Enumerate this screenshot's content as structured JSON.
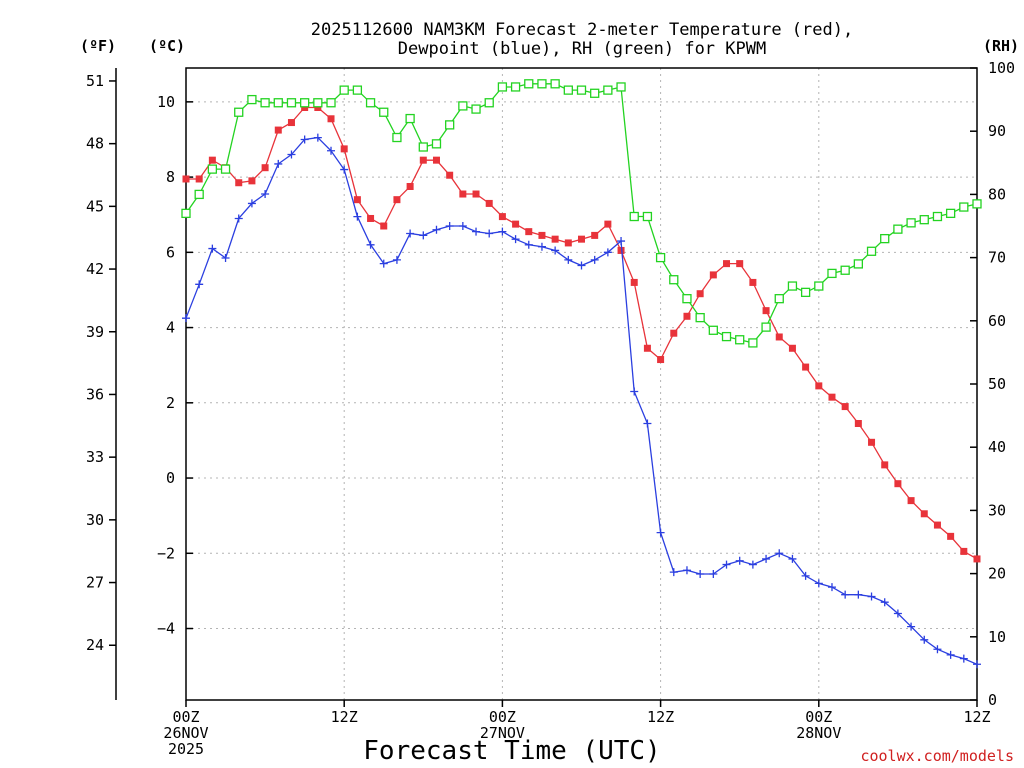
{
  "chart_data": {
    "type": "line",
    "title": "2025112600 NAM3KM Forecast 2-meter Temperature (red),",
    "subtitle": "Dewpoint (blue), RH (green) for KPWM",
    "xlabel": "Forecast Time (UTC)",
    "credit": "coolwx.com/models",
    "unit_labels": {
      "fahrenheit": "(ºF)",
      "celsius": "(ºC)",
      "rh": "(RH)"
    },
    "x_range_hours": [
      0,
      60
    ],
    "x_ticks": [
      {
        "hour": 0,
        "lines": [
          "00Z",
          "26NOV",
          "2025"
        ]
      },
      {
        "hour": 12,
        "lines": [
          "12Z"
        ]
      },
      {
        "hour": 24,
        "lines": [
          "00Z",
          "27NOV"
        ]
      },
      {
        "hour": 36,
        "lines": [
          "12Z"
        ]
      },
      {
        "hour": 48,
        "lines": [
          "00Z",
          "28NOV"
        ]
      },
      {
        "hour": 60,
        "lines": [
          "12Z"
        ]
      }
    ],
    "celsius_axis": {
      "range": [
        -5.9,
        10.9
      ],
      "ticks": [
        -4,
        -2,
        0,
        2,
        4,
        6,
        8,
        10
      ]
    },
    "fahrenheit_ticks": [
      24,
      27,
      30,
      33,
      36,
      39,
      42,
      45,
      48,
      51
    ],
    "rh_axis": {
      "range": [
        0,
        100
      ],
      "ticks": [
        0,
        10,
        20,
        30,
        40,
        50,
        60,
        70,
        80,
        90,
        100
      ]
    },
    "hours": [
      0,
      1,
      2,
      3,
      4,
      5,
      6,
      7,
      8,
      9,
      10,
      11,
      12,
      13,
      14,
      15,
      16,
      17,
      18,
      19,
      20,
      21,
      22,
      23,
      24,
      25,
      26,
      27,
      28,
      29,
      30,
      31,
      32,
      33,
      34,
      35,
      36,
      37,
      38,
      39,
      40,
      41,
      42,
      43,
      44,
      45,
      46,
      47,
      48,
      49,
      50,
      51,
      52,
      53,
      54,
      55,
      56,
      57,
      58,
      59,
      60
    ],
    "series": [
      {
        "name": "2-meter Temperature",
        "unit": "C",
        "color": "#e8333a",
        "marker": "filled-square",
        "values": [
          7.95,
          7.95,
          8.45,
          8.25,
          7.85,
          7.9,
          8.25,
          9.25,
          9.45,
          9.85,
          9.85,
          9.55,
          8.75,
          7.4,
          6.9,
          6.7,
          7.4,
          7.75,
          8.45,
          8.45,
          8.05,
          7.55,
          7.55,
          7.3,
          6.95,
          6.75,
          6.55,
          6.45,
          6.35,
          6.25,
          6.35,
          6.45,
          6.75,
          6.05,
          5.2,
          3.45,
          3.15,
          3.85,
          4.3,
          4.9,
          5.4,
          5.7,
          5.7,
          5.2,
          4.45,
          3.75,
          3.45,
          2.95,
          2.45,
          2.15,
          1.9,
          1.45,
          0.95,
          0.35,
          -0.15,
          -0.6,
          -0.95,
          -1.25,
          -1.55,
          -1.95,
          -2.15
        ]
      },
      {
        "name": "Dewpoint",
        "unit": "C",
        "color": "#2b3fe0",
        "marker": "plus",
        "values": [
          4.25,
          5.15,
          6.1,
          5.85,
          6.9,
          7.3,
          7.55,
          8.35,
          8.6,
          9.0,
          9.05,
          8.7,
          8.2,
          6.95,
          6.2,
          5.7,
          5.8,
          6.5,
          6.45,
          6.6,
          6.7,
          6.7,
          6.55,
          6.5,
          6.55,
          6.35,
          6.2,
          6.15,
          6.05,
          5.8,
          5.65,
          5.8,
          6.0,
          6.3,
          2.3,
          1.45,
          -1.45,
          -2.5,
          -2.45,
          -2.55,
          -2.55,
          -2.3,
          -2.2,
          -2.3,
          -2.15,
          -2.0,
          -2.15,
          -2.6,
          -2.8,
          -2.9,
          -3.1,
          -3.1,
          -3.15,
          -3.3,
          -3.6,
          -3.95,
          -4.3,
          -4.55,
          -4.7,
          -4.8,
          -4.95
        ]
      },
      {
        "name": "RH",
        "unit": "%",
        "color": "#23d321",
        "marker": "open-square",
        "values": [
          77,
          80,
          84,
          84,
          93,
          95,
          94.5,
          94.5,
          94.5,
          94.5,
          94.5,
          94.5,
          96.5,
          96.5,
          94.5,
          93,
          89,
          92,
          87.5,
          88,
          91,
          94,
          93.5,
          94.5,
          97,
          97,
          97.5,
          97.5,
          97.5,
          96.5,
          96.5,
          96,
          96.5,
          97,
          76.5,
          76.5,
          70,
          66.5,
          63.5,
          60.5,
          58.5,
          57.5,
          57,
          56.5,
          59,
          63.5,
          65.5,
          64.5,
          65.5,
          67.5,
          68,
          69,
          71,
          73,
          74.5,
          75.5,
          76,
          76.5,
          77,
          78,
          78.5
        ]
      }
    ]
  }
}
